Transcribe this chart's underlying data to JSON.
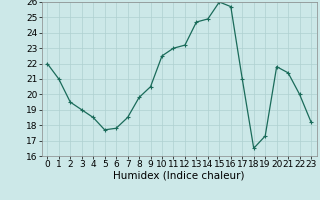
{
  "title": "",
  "xlabel": "Humidex (Indice chaleur)",
  "x": [
    0,
    1,
    2,
    3,
    4,
    5,
    6,
    7,
    8,
    9,
    10,
    11,
    12,
    13,
    14,
    15,
    16,
    17,
    18,
    19,
    20,
    21,
    22,
    23
  ],
  "y": [
    22,
    21,
    19.5,
    19,
    18.5,
    17.7,
    17.8,
    18.5,
    19.8,
    20.5,
    22.5,
    23.0,
    23.2,
    24.7,
    24.9,
    26.0,
    25.7,
    21.0,
    16.5,
    17.3,
    21.8,
    21.4,
    20.0,
    18.2
  ],
  "ylim": [
    16,
    26
  ],
  "xlim": [
    -0.5,
    23.5
  ],
  "yticks": [
    16,
    17,
    18,
    19,
    20,
    21,
    22,
    23,
    24,
    25,
    26
  ],
  "xticks": [
    0,
    1,
    2,
    3,
    4,
    5,
    6,
    7,
    8,
    9,
    10,
    11,
    12,
    13,
    14,
    15,
    16,
    17,
    18,
    19,
    20,
    21,
    22,
    23
  ],
  "line_color": "#1a6b5a",
  "marker": "+",
  "marker_size": 3,
  "marker_linewidth": 0.8,
  "linewidth": 0.9,
  "bg_color": "#cce8e8",
  "grid_color": "#afd0d0",
  "tick_fontsize": 6.5,
  "label_fontsize": 7.5
}
